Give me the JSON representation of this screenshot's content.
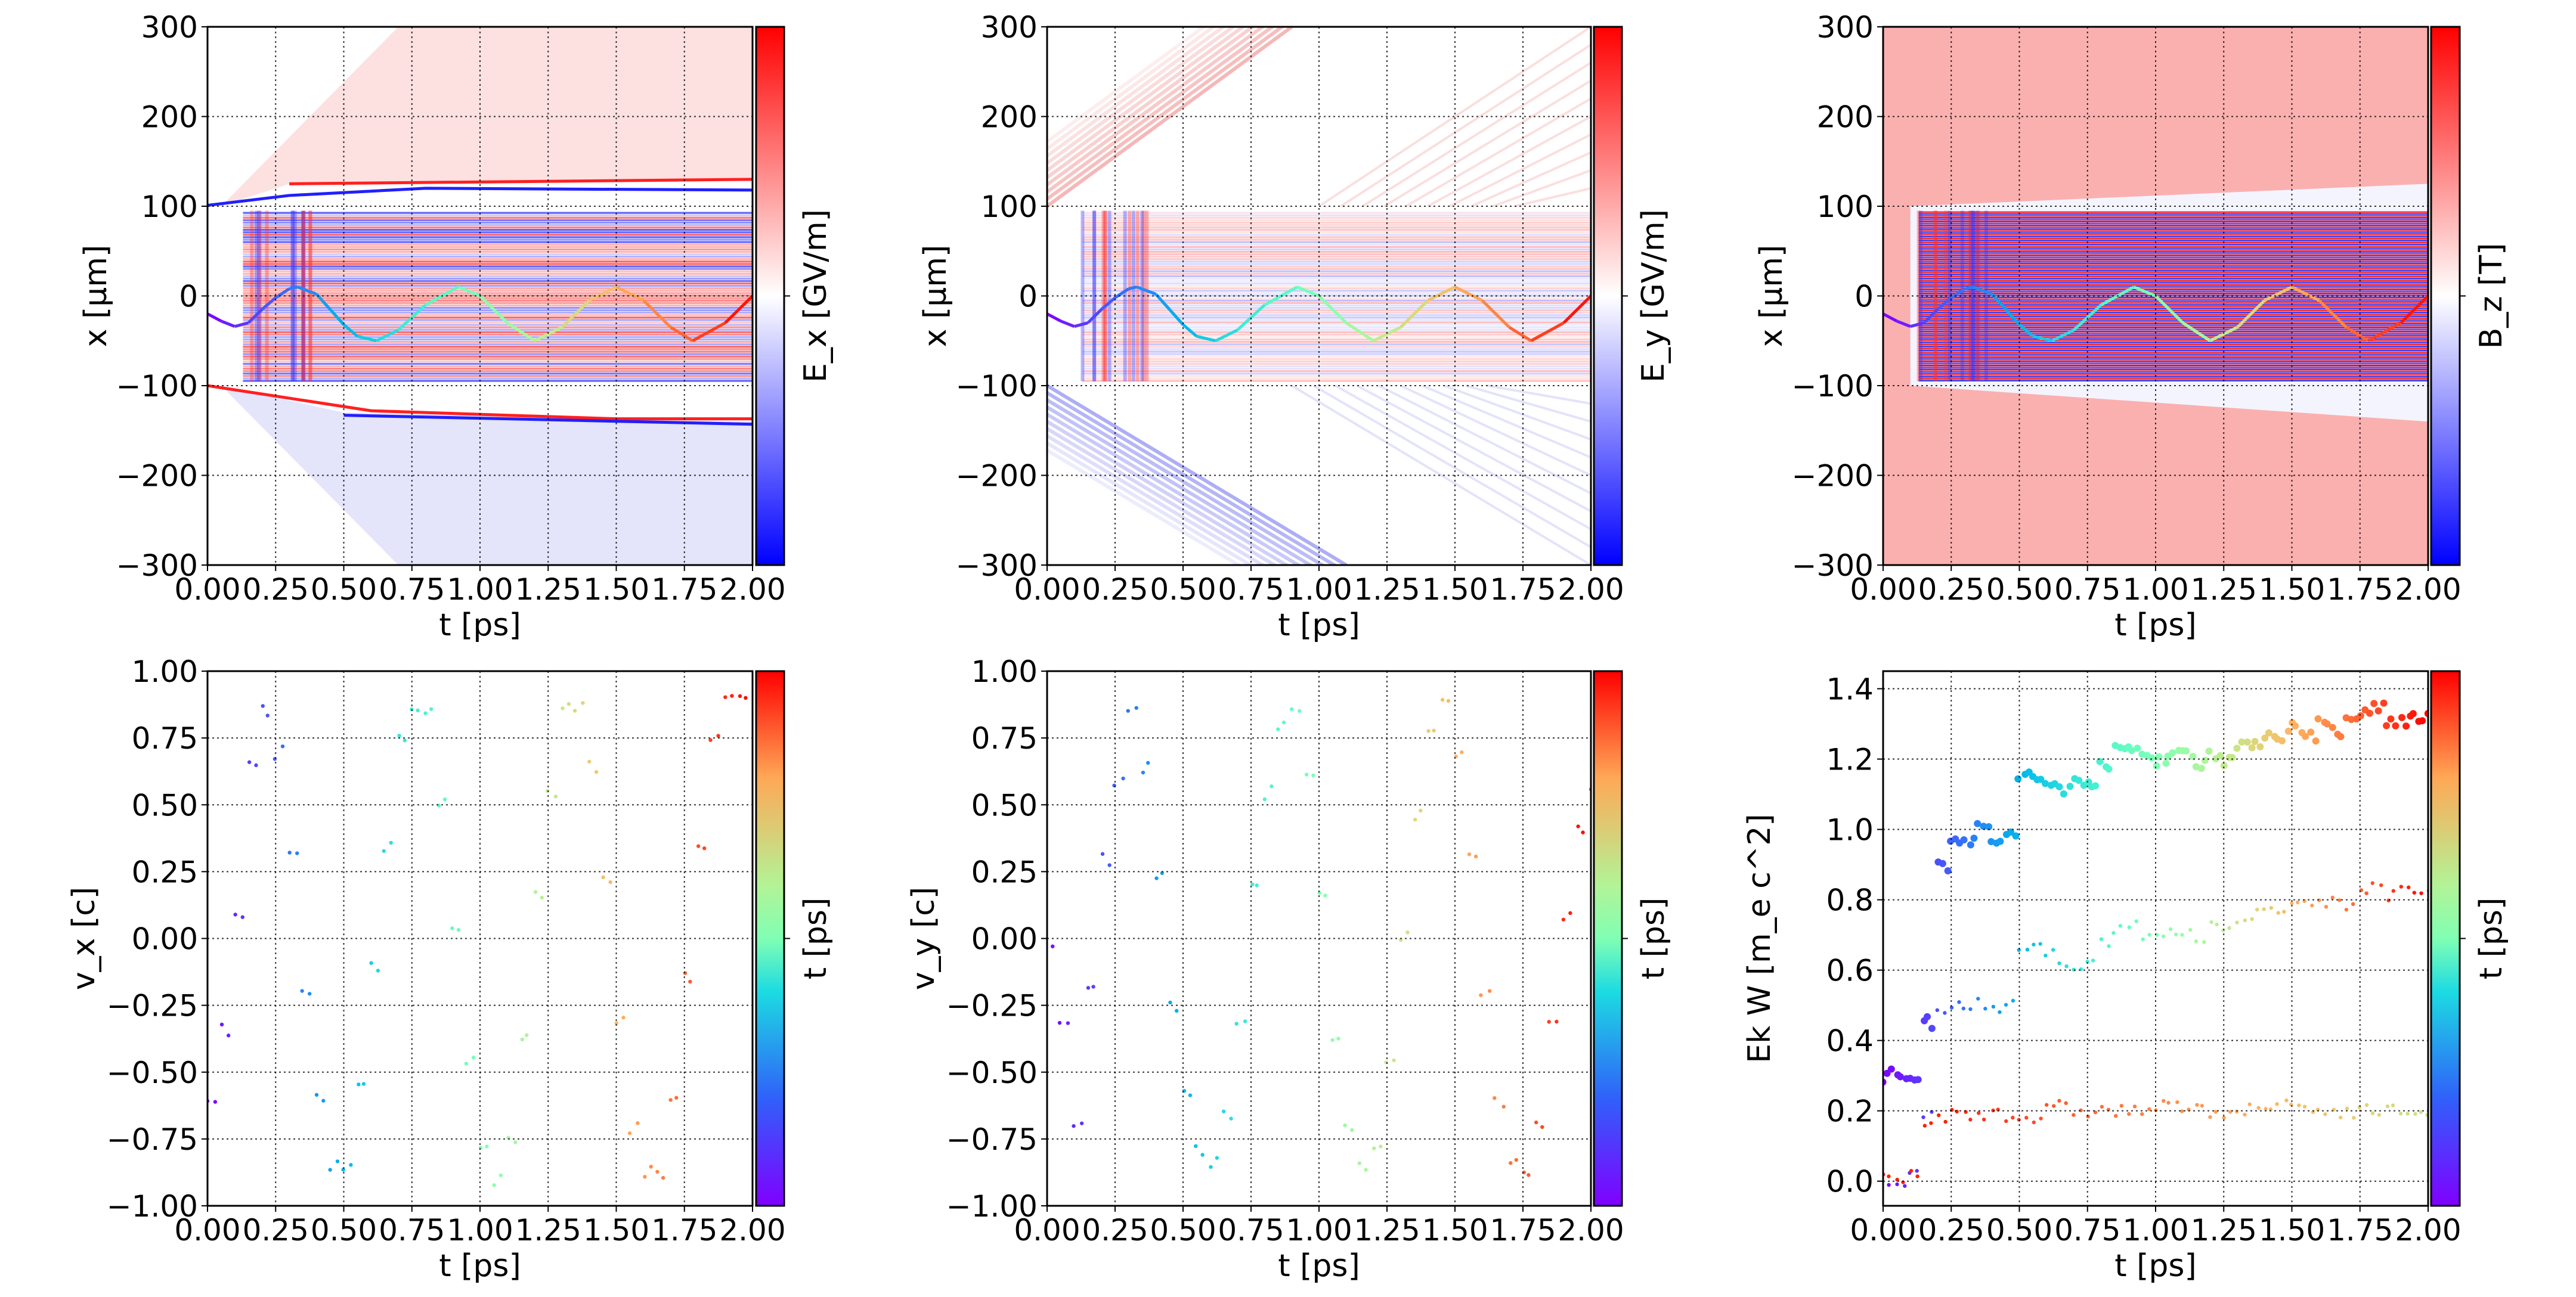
{
  "chart_data": [
    {
      "type": "heatmap",
      "xlabel": "t  [ps]",
      "ylabel": "x  [μm]",
      "colorbar_label": "E_x  [GV/m]",
      "colormap": "bwr",
      "xlim": [
        0,
        2
      ],
      "ylim": [
        -300,
        300
      ],
      "xticks": [
        "0.00",
        "0.25",
        "0.50",
        "0.75",
        "1.00",
        "1.25",
        "1.50",
        "1.75",
        "2.00"
      ],
      "yticks": [
        "−300",
        "−200",
        "−100",
        "0",
        "100",
        "200",
        "300"
      ],
      "grid": true
    },
    {
      "type": "heatmap",
      "xlabel": "t  [ps]",
      "ylabel": "x  [μm]",
      "colorbar_label": "E_y  [GV/m]",
      "colormap": "bwr",
      "xlim": [
        0,
        2
      ],
      "ylim": [
        -300,
        300
      ],
      "xticks": [
        "0.00",
        "0.25",
        "0.50",
        "0.75",
        "1.00",
        "1.25",
        "1.50",
        "1.75",
        "2.00"
      ],
      "yticks": [
        "−300",
        "−200",
        "−100",
        "0",
        "100",
        "200",
        "300"
      ],
      "grid": true
    },
    {
      "type": "heatmap",
      "xlabel": "t  [ps]",
      "ylabel": "x  [μm]",
      "colorbar_label": "B_z  [T]",
      "colormap": "bwr",
      "xlim": [
        0,
        2
      ],
      "ylim": [
        -300,
        300
      ],
      "xticks": [
        "0.00",
        "0.25",
        "0.50",
        "0.75",
        "1.00",
        "1.25",
        "1.50",
        "1.75",
        "2.00"
      ],
      "yticks": [
        "−300",
        "−200",
        "−100",
        "0",
        "100",
        "200",
        "300"
      ],
      "grid": true
    },
    {
      "type": "scatter",
      "xlabel": "t  [ps]",
      "ylabel": "v_x [c]",
      "colorbar_label": "t  [ps]",
      "colormap": "rainbow",
      "xlim": [
        0,
        2
      ],
      "ylim": [
        -1,
        1
      ],
      "xticks": [
        "0.00",
        "0.25",
        "0.50",
        "0.75",
        "1.00",
        "1.25",
        "1.50",
        "1.75",
        "2.00"
      ],
      "yticks": [
        "−1.00",
        "−0.75",
        "−0.50",
        "−0.25",
        "0.00",
        "0.25",
        "0.50",
        "0.75",
        "1.00"
      ],
      "grid": true,
      "x": [
        0,
        0.05,
        0.1,
        0.15,
        0.2,
        0.25,
        0.3,
        0.35,
        0.4,
        0.45,
        0.5,
        0.55,
        0.6,
        0.65,
        0.7,
        0.75,
        0.8,
        0.85,
        0.9,
        0.95,
        1.0,
        1.05,
        1.1,
        1.15,
        1.2,
        1.25,
        1.3,
        1.35,
        1.4,
        1.45,
        1.5,
        1.55,
        1.6,
        1.65,
        1.7,
        1.75,
        1.8,
        1.85,
        1.9,
        1.95,
        2.0
      ],
      "series": [
        {
          "values": [
            -0.63,
            -0.35,
            0.1,
            0.65,
            0.85,
            0.7,
            0.3,
            -0.2,
            -0.6,
            -0.85,
            -0.85,
            -0.55,
            -0.1,
            0.35,
            0.75,
            0.88,
            0.85,
            0.5,
            0.05,
            -0.45,
            -0.8,
            -0.9,
            -0.75,
            -0.35,
            0.15,
            0.55,
            0.85,
            0.88,
            0.65,
            0.2,
            -0.3,
            -0.7,
            -0.88,
            -0.88,
            -0.6,
            -0.15,
            0.35,
            0.75,
            0.9,
            0.88,
            0.8
          ]
        }
      ]
    },
    {
      "type": "scatter",
      "xlabel": "t  [ps]",
      "ylabel": "v_y [c]",
      "colorbar_label": "t  [ps]",
      "colormap": "rainbow",
      "xlim": [
        0,
        2
      ],
      "ylim": [
        -1,
        1
      ],
      "xticks": [
        "0.00",
        "0.25",
        "0.50",
        "0.75",
        "1.00",
        "1.25",
        "1.50",
        "1.75",
        "2.00"
      ],
      "yticks": [
        "−1.00",
        "−0.75",
        "−0.50",
        "−0.25",
        "0.00",
        "0.25",
        "0.50",
        "0.75",
        "1.00"
      ],
      "grid": true,
      "x": [
        0,
        0.05,
        0.1,
        0.15,
        0.2,
        0.25,
        0.3,
        0.35,
        0.4,
        0.45,
        0.5,
        0.55,
        0.6,
        0.65,
        0.7,
        0.75,
        0.8,
        0.85,
        0.9,
        0.95,
        1.0,
        1.05,
        1.1,
        1.15,
        1.2,
        1.25,
        1.3,
        1.35,
        1.4,
        1.45,
        1.5,
        1.55,
        1.6,
        1.65,
        1.7,
        1.75,
        1.8,
        1.85,
        1.9,
        1.95,
        2.0
      ],
      "series": [
        {
          "values": [
            -0.05,
            -0.3,
            -0.68,
            -0.2,
            0.3,
            0.6,
            0.85,
            0.65,
            0.25,
            -0.25,
            -0.6,
            -0.8,
            -0.85,
            -0.65,
            -0.3,
            0.2,
            0.55,
            0.8,
            0.88,
            0.6,
            0.15,
            -0.35,
            -0.7,
            -0.85,
            -0.8,
            -0.45,
            0.0,
            0.45,
            0.75,
            0.88,
            0.7,
            0.3,
            -0.2,
            -0.6,
            -0.85,
            -0.9,
            -0.7,
            -0.3,
            0.1,
            0.4,
            0.55
          ]
        }
      ]
    },
    {
      "type": "scatter",
      "xlabel": "t  [ps]",
      "ylabel": "Ek W [m_e c^2]",
      "colorbar_label": "t  [ps]",
      "colormap": "rainbow",
      "xlim": [
        0,
        2
      ],
      "ylim": [
        -0.07,
        1.45
      ],
      "xticks": [
        "0.00",
        "0.25",
        "0.50",
        "0.75",
        "1.00",
        "1.25",
        "1.50",
        "1.75",
        "2.00"
      ],
      "yticks": [
        "0.0",
        "0.2",
        "0.4",
        "0.6",
        "0.8",
        "1.0",
        "1.2",
        "1.4"
      ],
      "grid": true,
      "x": [
        0,
        0.05,
        0.1,
        0.15,
        0.2,
        0.25,
        0.3,
        0.35,
        0.4,
        0.45,
        0.5,
        0.55,
        0.6,
        0.65,
        0.7,
        0.75,
        0.8,
        0.85,
        0.9,
        0.95,
        1.0,
        1.05,
        1.1,
        1.15,
        1.2,
        1.25,
        1.3,
        1.35,
        1.4,
        1.45,
        1.5,
        1.55,
        1.6,
        1.65,
        1.7,
        1.75,
        1.8,
        1.85,
        1.9,
        1.95,
        2.0
      ],
      "series": [
        {
          "marker": "large",
          "values": [
            0.3,
            0.3,
            0.3,
            0.45,
            0.9,
            0.98,
            0.97,
            1.0,
            0.97,
            0.98,
            1.15,
            1.14,
            1.13,
            1.12,
            1.13,
            1.14,
            1.19,
            1.22,
            1.23,
            1.21,
            1.2,
            1.22,
            1.21,
            1.19,
            1.22,
            1.2,
            1.23,
            1.25,
            1.27,
            1.27,
            1.29,
            1.27,
            1.3,
            1.28,
            1.3,
            1.33,
            1.35,
            1.3,
            1.31,
            1.32,
            1.31
          ]
        },
        {
          "marker": "small",
          "values": [
            0,
            0,
            0.01,
            0.2,
            0.47,
            0.5,
            0.49,
            0.51,
            0.48,
            0.5,
            0.65,
            0.66,
            0.64,
            0.61,
            0.62,
            0.64,
            0.68,
            0.71,
            0.72,
            0.7,
            0.71,
            0.72,
            0.7,
            0.68,
            0.73,
            0.72,
            0.74,
            0.76,
            0.77,
            0.77,
            0.78,
            0.78,
            0.8,
            0.79,
            0.79,
            0.83,
            0.85,
            0.81,
            0.82,
            0.83,
            0.82
          ]
        },
        {
          "marker": "small",
          "color_range": [
            "#ff0000",
            "#ffdd00"
          ],
          "values": [
            0,
            0,
            0.01,
            0.17,
            0.18,
            0.19,
            0.19,
            0.19,
            0.2,
            0.19,
            0.18,
            0.18,
            0.2,
            0.21,
            0.2,
            0.2,
            0.2,
            0.2,
            0.2,
            0.2,
            0.21,
            0.21,
            0.21,
            0.2,
            0.2,
            0.2,
            0.2,
            0.2,
            0.21,
            0.21,
            0.22,
            0.2,
            0.2,
            0.2,
            0.2,
            0.2,
            0.2,
            0.2,
            0.2,
            0.2,
            0.2
          ]
        }
      ]
    }
  ],
  "trajectory": {
    "t": [
      0,
      0.05,
      0.1,
      0.15,
      0.2,
      0.25,
      0.3,
      0.33,
      0.4,
      0.45,
      0.5,
      0.55,
      0.62,
      0.7,
      0.8,
      0.92,
      1.0,
      1.1,
      1.2,
      1.3,
      1.4,
      1.5,
      1.6,
      1.7,
      1.78,
      1.9,
      2.0
    ],
    "x": [
      -20,
      -28,
      -34,
      -30,
      -15,
      -2,
      8,
      10,
      2,
      -15,
      -32,
      -45,
      -50,
      -38,
      -10,
      10,
      0,
      -30,
      -50,
      -35,
      -5,
      10,
      -5,
      -35,
      -50,
      -30,
      0
    ]
  },
  "colors": {
    "red": "#ff0000",
    "blue": "#0000ff",
    "pink_bg": "#fbb0b0"
  }
}
